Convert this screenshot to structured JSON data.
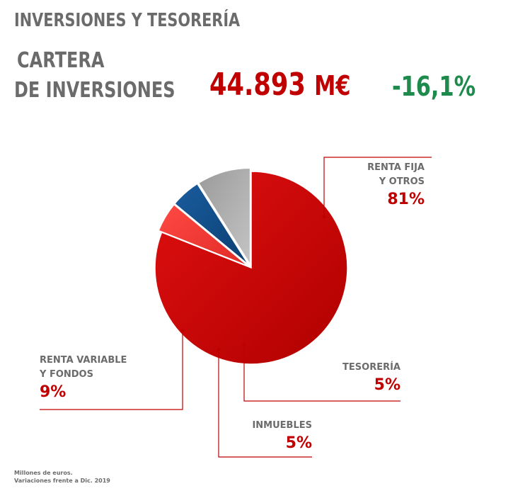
{
  "header": {
    "title": "INVERSIONES Y TESORERÍA",
    "portfolio_line1": "CARTERA",
    "portfolio_line2": "DE INVERSIONES",
    "amount_value": "44.893",
    "amount_unit": "M€",
    "change": "-16,1%"
  },
  "colors": {
    "accent": "#c00000",
    "positive": "#1e8a4c",
    "text": "#6b6b6b"
  },
  "chart_data": {
    "type": "pie",
    "slices": [
      {
        "label": [
          "RENTA FIJA",
          "Y OTROS"
        ],
        "value": 81,
        "display": "81%",
        "color": "#d10a0a"
      },
      {
        "label": [
          "TESORERÍA"
        ],
        "value": 5,
        "display": "5%",
        "color": "#f23a34"
      },
      {
        "label": [
          "INMUEBLES"
        ],
        "value": 5,
        "display": "5%",
        "color": "#0f4f8c"
      },
      {
        "label": [
          "RENTA VARIABLE",
          "Y FONDOS"
        ],
        "value": 9,
        "display": "9%",
        "color": "#a9a9a9"
      }
    ]
  },
  "footer": {
    "line1": "Millones de euros.",
    "line2": "Variaciones frente a Dic. 2019"
  }
}
